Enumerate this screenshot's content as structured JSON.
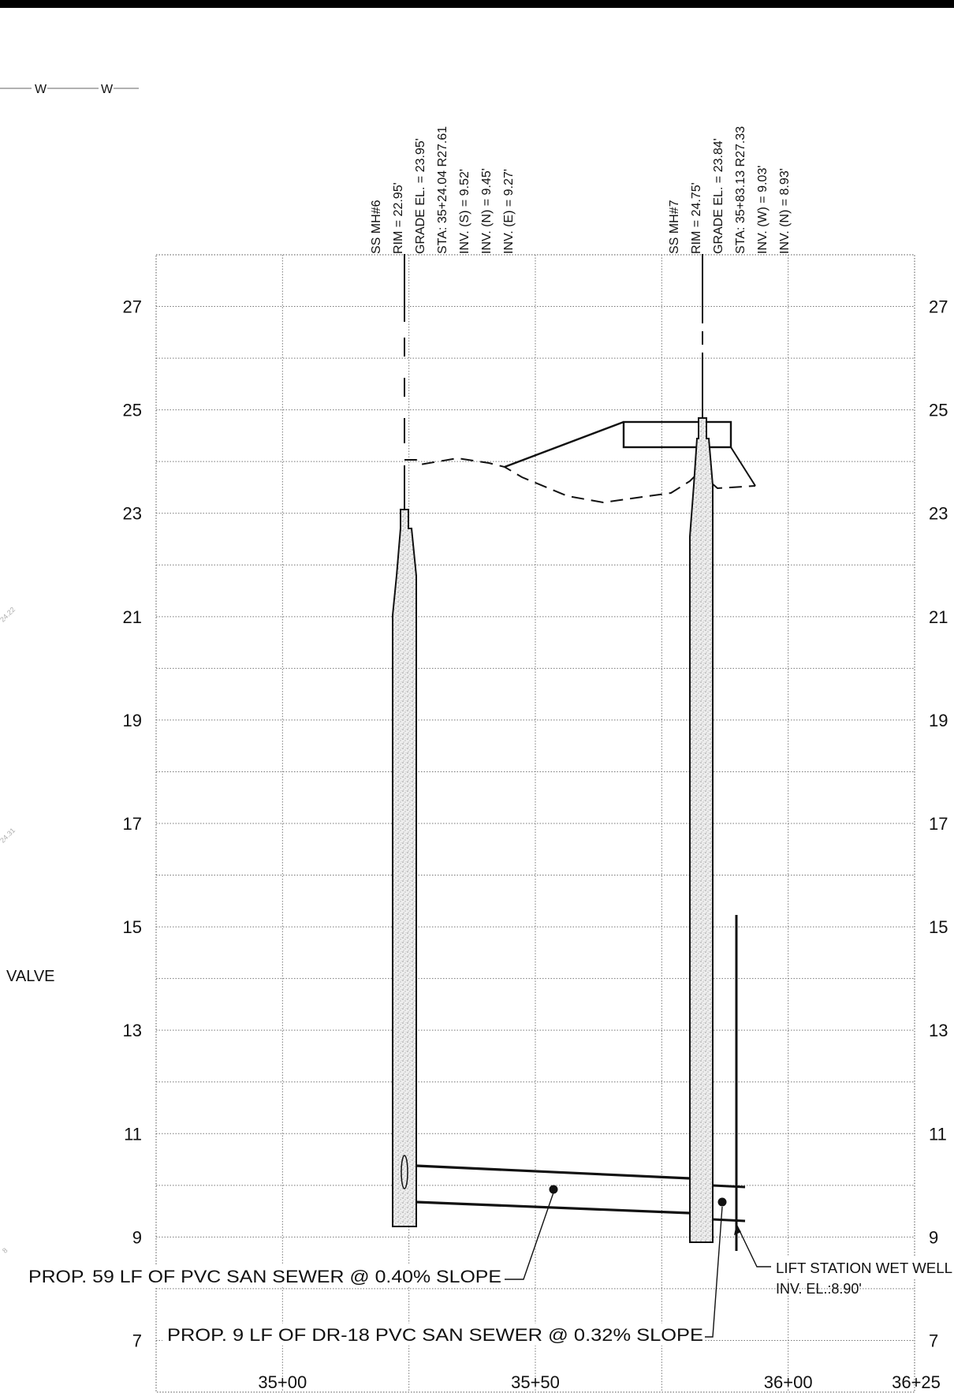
{
  "title": "",
  "profile": {
    "elevation_ticks": [
      "27",
      "25",
      "23",
      "21",
      "19",
      "17",
      "15",
      "13",
      "11",
      "9",
      "7"
    ],
    "station_ticks": [
      "35+00",
      "35+50",
      "36+00",
      "36+25"
    ],
    "station_range": [
      3475,
      3625
    ],
    "elevation_range": [
      6,
      28
    ]
  },
  "manholes": [
    {
      "name": "SS MH#6",
      "rim": "RIM = 22.95'",
      "grade": "GRADE EL. = 23.95'",
      "sta": "STA: 35+24.04 R27.61",
      "inverts": [
        "INV. (S) = 9.52'",
        "INV. (N) = 9.45'",
        "INV. (E) = 9.27'"
      ]
    },
    {
      "name": "SS MH#7",
      "rim": "RIM = 24.75'",
      "grade": "GRADE EL. = 23.84'",
      "sta": "STA: 35+83.13 R27.33",
      "inverts": [
        "INV. (W) = 9.03'",
        "INV. (N) = 8.93'"
      ]
    }
  ],
  "callouts": {
    "pipe_1": "PROP. 59 LF OF PVC SAN SEWER @ 0.40% SLOPE",
    "pipe_2": "PROP. 9 LF OF DR-18 PVC SAN SEWER @ 0.32% SLOPE",
    "wet_well_1": "LIFT STATION WET WELL",
    "wet_well_2": "INV. EL.:8.90'"
  },
  "left_margin": {
    "valve_label": "VALVE",
    "water_line_marks": [
      "W",
      "W"
    ],
    "faint_labels": [
      "24.22",
      "24.31",
      "8"
    ]
  }
}
